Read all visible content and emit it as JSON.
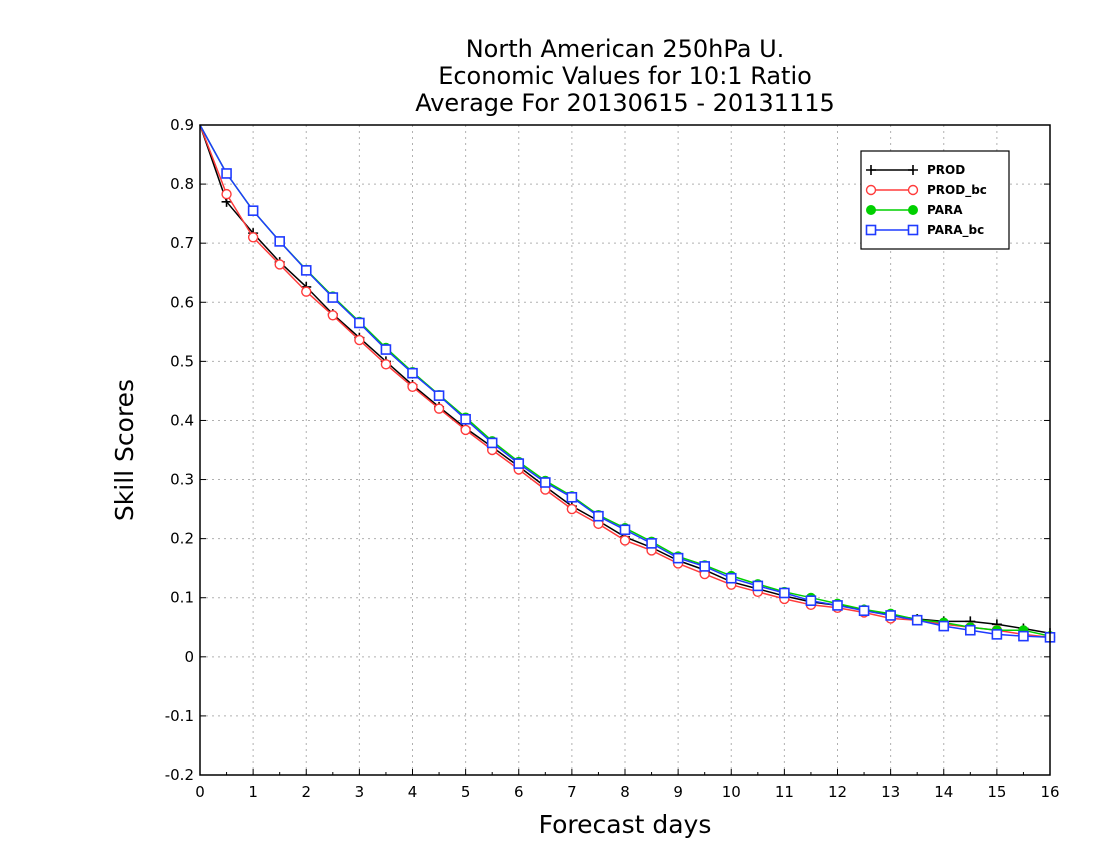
{
  "chart_data": {
    "type": "line",
    "title_lines": [
      "North American 250hPa U.",
      "Economic Values for 10:1 Ratio",
      "Average For 20130615 - 20131115"
    ],
    "xlabel": "Forecast days",
    "ylabel": "Skill Scores",
    "xlim": [
      0,
      16
    ],
    "ylim": [
      -0.2,
      0.9
    ],
    "xticks": [
      0,
      1,
      2,
      3,
      4,
      5,
      6,
      7,
      8,
      9,
      10,
      11,
      12,
      13,
      14,
      15,
      16
    ],
    "yticks": [
      -0.2,
      -0.1,
      0,
      0.1,
      0.2,
      0.3,
      0.4,
      0.5,
      0.6,
      0.7,
      0.8,
      0.9
    ],
    "grid": true,
    "legend_position": "top-right",
    "x": [
      0,
      0.5,
      1,
      1.5,
      2,
      2.5,
      3,
      3.5,
      4,
      4.5,
      5,
      5.5,
      6,
      6.5,
      7,
      7.5,
      8,
      8.5,
      9,
      9.5,
      10,
      10.5,
      11,
      11.5,
      12,
      12.5,
      13,
      13.5,
      14,
      14.5,
      15,
      15.5,
      16
    ],
    "series": [
      {
        "name": "PROD",
        "color": "#000000",
        "marker": "plus",
        "values": [
          0.9,
          0.77,
          0.717,
          0.668,
          0.626,
          0.58,
          0.54,
          0.5,
          0.46,
          0.423,
          0.387,
          0.355,
          0.322,
          0.288,
          0.255,
          0.23,
          0.203,
          0.185,
          0.163,
          0.147,
          0.127,
          0.115,
          0.103,
          0.093,
          0.087,
          0.08,
          0.07,
          0.064,
          0.06,
          0.06,
          0.055,
          0.048,
          0.04
        ]
      },
      {
        "name": "PROD_bc",
        "color": "#ff3b3b",
        "marker": "circle",
        "values": [
          0.9,
          0.783,
          0.71,
          0.664,
          0.618,
          0.578,
          0.536,
          0.495,
          0.457,
          0.42,
          0.384,
          0.35,
          0.317,
          0.283,
          0.25,
          0.225,
          0.197,
          0.18,
          0.158,
          0.14,
          0.122,
          0.11,
          0.098,
          0.088,
          0.083,
          0.075,
          0.065,
          0.062,
          0.055,
          0.05,
          0.045,
          0.038,
          0.033
        ]
      },
      {
        "name": "PARA",
        "color": "#00d000",
        "marker": "dot",
        "values": [
          0.9,
          0.818,
          0.755,
          0.703,
          0.655,
          0.61,
          0.567,
          0.523,
          0.482,
          0.443,
          0.405,
          0.365,
          0.33,
          0.298,
          0.272,
          0.24,
          0.218,
          0.195,
          0.17,
          0.155,
          0.137,
          0.123,
          0.11,
          0.1,
          0.09,
          0.08,
          0.073,
          0.063,
          0.058,
          0.05,
          0.045,
          0.045,
          0.035
        ]
      },
      {
        "name": "PARA_bc",
        "color": "#1f3bff",
        "marker": "square",
        "values": [
          0.9,
          0.818,
          0.755,
          0.703,
          0.654,
          0.608,
          0.565,
          0.52,
          0.48,
          0.442,
          0.402,
          0.362,
          0.327,
          0.295,
          0.27,
          0.238,
          0.215,
          0.192,
          0.167,
          0.153,
          0.133,
          0.12,
          0.108,
          0.095,
          0.087,
          0.078,
          0.07,
          0.062,
          0.052,
          0.045,
          0.038,
          0.035,
          0.033
        ]
      }
    ]
  }
}
